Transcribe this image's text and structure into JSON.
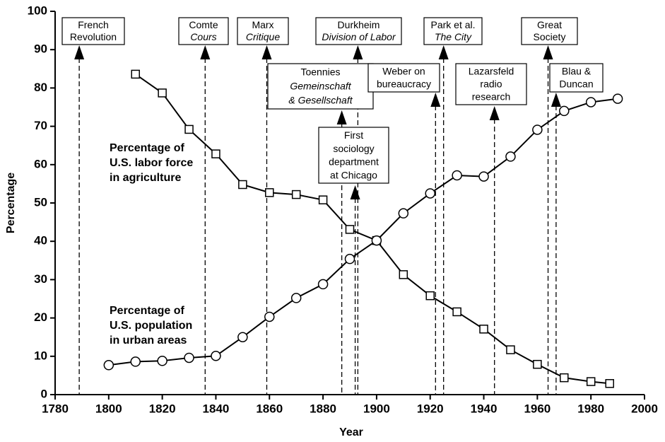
{
  "chart_data": {
    "type": "line",
    "xlabel": "Year",
    "ylabel": "Percentage",
    "xlim": [
      1780,
      2000
    ],
    "xticks": [
      1780,
      1800,
      1820,
      1840,
      1860,
      1880,
      1900,
      1920,
      1940,
      1960,
      1980,
      2000
    ],
    "ylim": [
      0,
      100
    ],
    "yticks": [
      0,
      10,
      20,
      30,
      40,
      50,
      60,
      70,
      80,
      90,
      100
    ],
    "grid": false,
    "series": [
      {
        "name": [
          "Percentage of",
          "U.S. labor force",
          "in agriculture"
        ],
        "color": "#000000",
        "marker": "square",
        "x": [
          1810,
          1820,
          1830,
          1840,
          1850,
          1860,
          1870,
          1880,
          1890,
          1900,
          1910,
          1920,
          1930,
          1940,
          1950,
          1960,
          1970,
          1980,
          1987
        ],
        "values": [
          83.6,
          78.7,
          69.2,
          62.8,
          54.8,
          52.7,
          52.2,
          50.8,
          43.1,
          40.2,
          31.3,
          25.8,
          21.6,
          17.1,
          11.7,
          7.9,
          4.4,
          3.4,
          2.9
        ]
      },
      {
        "name": [
          "Percentage of",
          "U.S. population",
          "in urban areas"
        ],
        "color": "#000000",
        "marker": "circle",
        "x": [
          1800,
          1810,
          1820,
          1830,
          1840,
          1850,
          1860,
          1870,
          1880,
          1890,
          1900,
          1910,
          1920,
          1930,
          1940,
          1950,
          1960,
          1970,
          1980,
          1990
        ],
        "values": [
          7.7,
          8.6,
          8.8,
          9.6,
          10.1,
          15.0,
          20.3,
          25.2,
          28.8,
          35.4,
          40.2,
          47.3,
          52.5,
          57.2,
          56.9,
          62.1,
          69.1,
          74.0,
          76.3,
          77.2
        ]
      }
    ],
    "annotations": [
      {
        "x": 1789,
        "lines": [
          {
            "text": "French",
            "italic": false
          },
          {
            "text": "Revolution",
            "italic": false
          }
        ]
      },
      {
        "x": 1836,
        "lines": [
          {
            "text": "Comte",
            "italic": false
          },
          {
            "text": "Cours",
            "italic": true
          }
        ]
      },
      {
        "x": 1859,
        "lines": [
          {
            "text": "Marx",
            "italic": false
          },
          {
            "text": "Critique",
            "italic": true
          }
        ]
      },
      {
        "x": 1893,
        "lines": [
          {
            "text": "Durkheim",
            "italic": false
          },
          {
            "text": "Division of Labor",
            "italic": true
          }
        ]
      },
      {
        "x": 1925,
        "lines": [
          {
            "text": "Park et al.",
            "italic": false
          },
          {
            "text": "The City",
            "italic": true
          }
        ]
      },
      {
        "x": 1964,
        "lines": [
          {
            "text": "Great",
            "italic": false
          },
          {
            "text": "Society",
            "italic": false
          }
        ]
      },
      {
        "x": 1887,
        "lines": [
          {
            "text": "Toennies",
            "italic": false
          },
          {
            "text": "Gemeinschaft",
            "italic": true
          },
          {
            "text": "& Gesellschaft",
            "italic": true
          }
        ]
      },
      {
        "x": 1922,
        "lines": [
          {
            "text": "Weber  on",
            "italic": false
          },
          {
            "text": "bureaucracy",
            "italic": false
          }
        ]
      },
      {
        "x": 1944,
        "lines": [
          {
            "text": "Lazarsfeld",
            "italic": false
          },
          {
            "text": "radio",
            "italic": false
          },
          {
            "text": "research",
            "italic": false
          }
        ]
      },
      {
        "x": 1967,
        "lines": [
          {
            "text": "Blau &",
            "italic": false
          },
          {
            "text": "Duncan",
            "italic": false
          }
        ]
      },
      {
        "x": 1892,
        "lines": [
          {
            "text": "First",
            "italic": false
          },
          {
            "text": "sociology",
            "italic": false
          },
          {
            "text": "department",
            "italic": false
          },
          {
            "text": "at Chicago",
            "italic": false
          }
        ]
      }
    ]
  }
}
